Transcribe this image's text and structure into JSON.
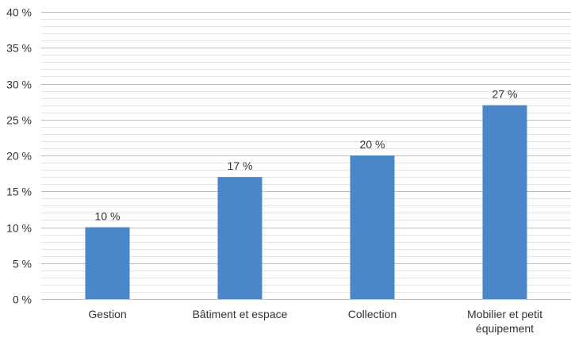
{
  "chart_data": {
    "type": "bar",
    "categories": [
      [
        "Gestion"
      ],
      [
        "Bâtiment et espace"
      ],
      [
        "Collection"
      ],
      [
        "Mobilier et petit",
        "équipement"
      ]
    ],
    "values": [
      10,
      17,
      20,
      27
    ],
    "data_labels": [
      "10 %",
      "17 %",
      "20 %",
      "27 %"
    ],
    "y_ticks": [
      "0 %",
      "5 %",
      "10 %",
      "15 %",
      "20 %",
      "25 %",
      "30 %",
      "35 %",
      "40 %"
    ],
    "ylim": [
      0,
      40
    ],
    "ytick_step": 5,
    "minor_grid_step": 1,
    "title": "",
    "xlabel": "",
    "ylabel": "",
    "grid": true,
    "legend": "none",
    "colors": {
      "bar": "#4a86c8",
      "major_grid": "#bfbfbf",
      "minor_grid": "#e3e3e3",
      "axis": "#bfbfbf",
      "text": "#333333"
    }
  }
}
